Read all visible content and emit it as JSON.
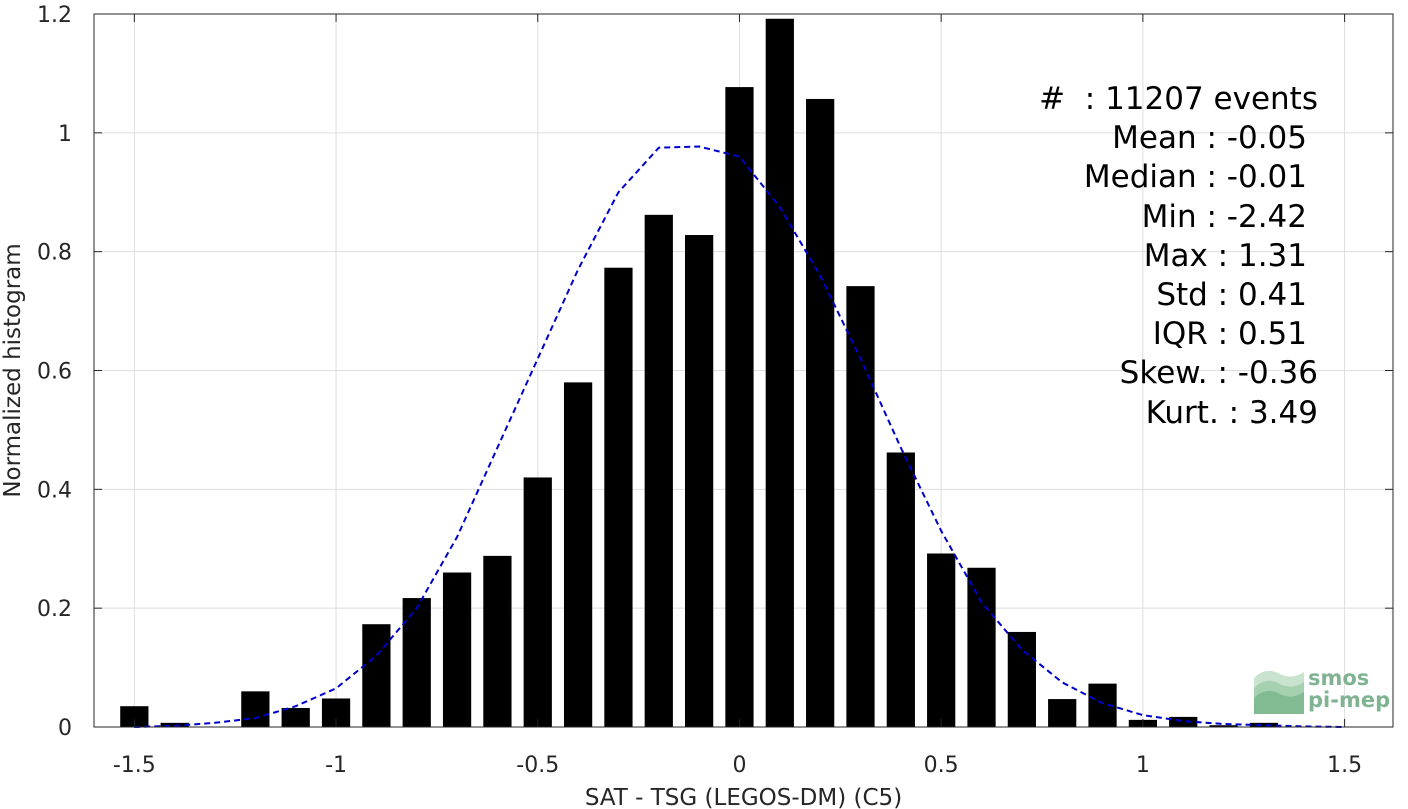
{
  "chart_data": {
    "type": "bar",
    "xlabel": "SAT - TSG (LEGOS-DM) (C5)",
    "ylabel": "Normalized histogram",
    "xlim": [
      -1.6,
      1.62
    ],
    "ylim": [
      0,
      1.2
    ],
    "xticks": [
      "-1.5",
      "-1",
      "-0.5",
      "0",
      "0.5",
      "1",
      "1.5"
    ],
    "yticks": [
      "0",
      "0.2",
      "0.4",
      "0.6",
      "0.8",
      "1",
      "1.2"
    ],
    "grid": true,
    "bar_width": 0.07,
    "bars": {
      "x": [
        -1.5,
        -1.4,
        -1.2,
        -1.1,
        -1.0,
        -0.9,
        -0.8,
        -0.7,
        -0.6,
        -0.5,
        -0.4,
        -0.3,
        -0.2,
        -0.1,
        0.0,
        0.1,
        0.2,
        0.3,
        0.4,
        0.5,
        0.6,
        0.7,
        0.8,
        0.9,
        1.0,
        1.1,
        1.2,
        1.3
      ],
      "y": [
        0.035,
        0.007,
        0.06,
        0.032,
        0.048,
        0.173,
        0.217,
        0.26,
        0.288,
        0.42,
        0.58,
        0.773,
        0.862,
        0.828,
        1.077,
        1.192,
        1.057,
        0.742,
        0.462,
        0.292,
        0.268,
        0.16,
        0.047,
        0.073,
        0.012,
        0.017,
        0.003,
        0.007
      ]
    },
    "fit_curve": {
      "style": "dashed",
      "color": "#0000cc",
      "x": [
        -1.5,
        -1.4,
        -1.3,
        -1.2,
        -1.1,
        -1.0,
        -0.9,
        -0.8,
        -0.7,
        -0.6,
        -0.5,
        -0.4,
        -0.3,
        -0.2,
        -0.1,
        0.0,
        0.1,
        0.2,
        0.3,
        0.4,
        0.5,
        0.6,
        0.7,
        0.8,
        0.9,
        1.0,
        1.1,
        1.2,
        1.3,
        1.4,
        1.5
      ],
      "y": [
        0.0,
        0.002,
        0.007,
        0.015,
        0.035,
        0.065,
        0.12,
        0.2,
        0.32,
        0.47,
        0.62,
        0.77,
        0.9,
        0.975,
        0.977,
        0.96,
        0.875,
        0.76,
        0.62,
        0.47,
        0.33,
        0.21,
        0.13,
        0.075,
        0.04,
        0.02,
        0.01,
        0.005,
        0.003,
        0.001,
        0.0
      ]
    },
    "stats": [
      "#  : 11207 events",
      "Mean : -0.05",
      "Median : -0.01",
      "Min : -2.42",
      "Max : 1.31",
      "Std : 0.41",
      "IQR : 0.51",
      "Skew. : -0.36",
      "Kurt. : 3.49"
    ]
  },
  "logo": {
    "line1": "smos",
    "line2": "pi-mep"
  },
  "colors": {
    "bars": "#000000",
    "fit": "#0000cc",
    "grid": "#dedede",
    "axis": "#262626",
    "logo": "#7fb392"
  }
}
